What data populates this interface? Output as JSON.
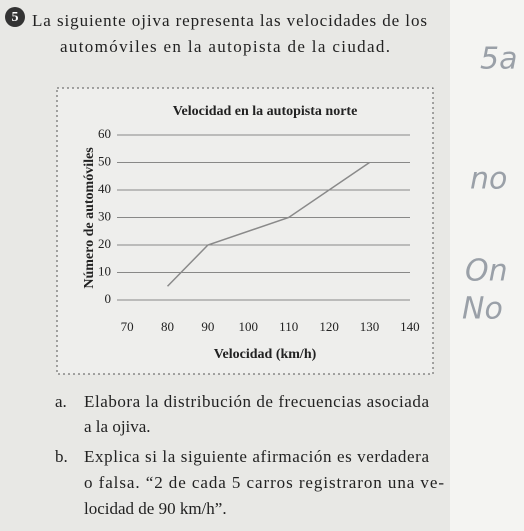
{
  "exercise": {
    "number": "5",
    "statement": [
      "La siguiente ojiva representa las velocidades de los",
      "automóviles en la autopista de la ciudad."
    ]
  },
  "chart_data": {
    "type": "line",
    "title": "Velocidad en la autopista norte",
    "x_label": "Velocidad (km/h)",
    "y_label": "Número de automóviles",
    "x": [
      80,
      90,
      110,
      130
    ],
    "values": [
      5,
      20,
      30,
      50
    ],
    "color": "#8a8a8a",
    "xlim": [
      67,
      143
    ],
    "xticks": [
      70,
      80,
      90,
      100,
      110,
      120,
      130,
      140
    ],
    "ylim": [
      0,
      60
    ],
    "yticks": [
      0,
      10,
      20,
      30,
      40,
      50,
      60
    ],
    "grid": true
  },
  "questions": [
    {
      "label": "a.",
      "lines": [
        "Elabora la distribución de frecuencias asociada",
        "a la ojiva."
      ]
    },
    {
      "label": "b.",
      "lines": [
        "Explica si la siguiente afirmación es verdadera",
        "o falsa. “2 de cada 5 carros registraron una ve-",
        "locidad de 90 km/h”."
      ]
    }
  ],
  "handwriting": [
    "5a",
    "no",
    "On",
    "No"
  ]
}
